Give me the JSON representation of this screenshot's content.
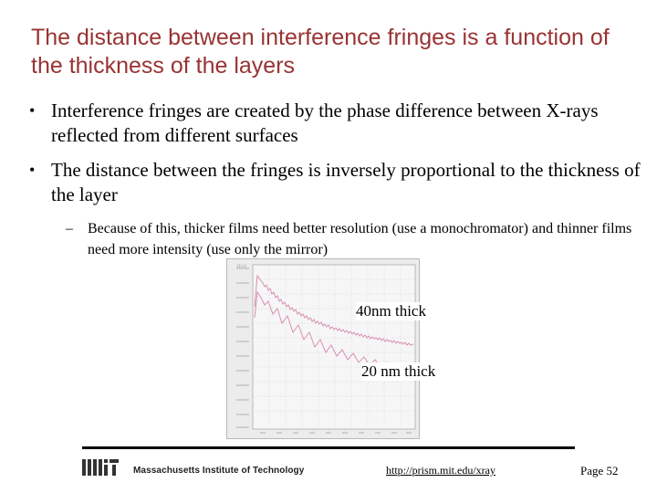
{
  "slide": {
    "title": "The distance between interference fringes is a function of the thickness of the layers",
    "bullets": [
      "Interference fringes are created by the phase difference between X-rays reflected from different surfaces",
      "The distance between the fringes is inversely proportional to the thickness of the layer"
    ],
    "sub_bullet": "Because of this, thicker films need better resolution (use a monochromator) and thinner films need more intensity (use only the mirror)"
  },
  "figure": {
    "label_40nm": "40nm thick",
    "label_20nm": "20 nm thick",
    "plot_colors": {
      "background": "#ececec",
      "curve": "#d98fb3",
      "grid": "#c4c4c4"
    }
  },
  "footer": {
    "logo_icon": "mit-logo-icon",
    "institute": "Massachusetts Institute of Technology",
    "url": "http://prism.mit.edu/xray",
    "page": "Page 52"
  }
}
